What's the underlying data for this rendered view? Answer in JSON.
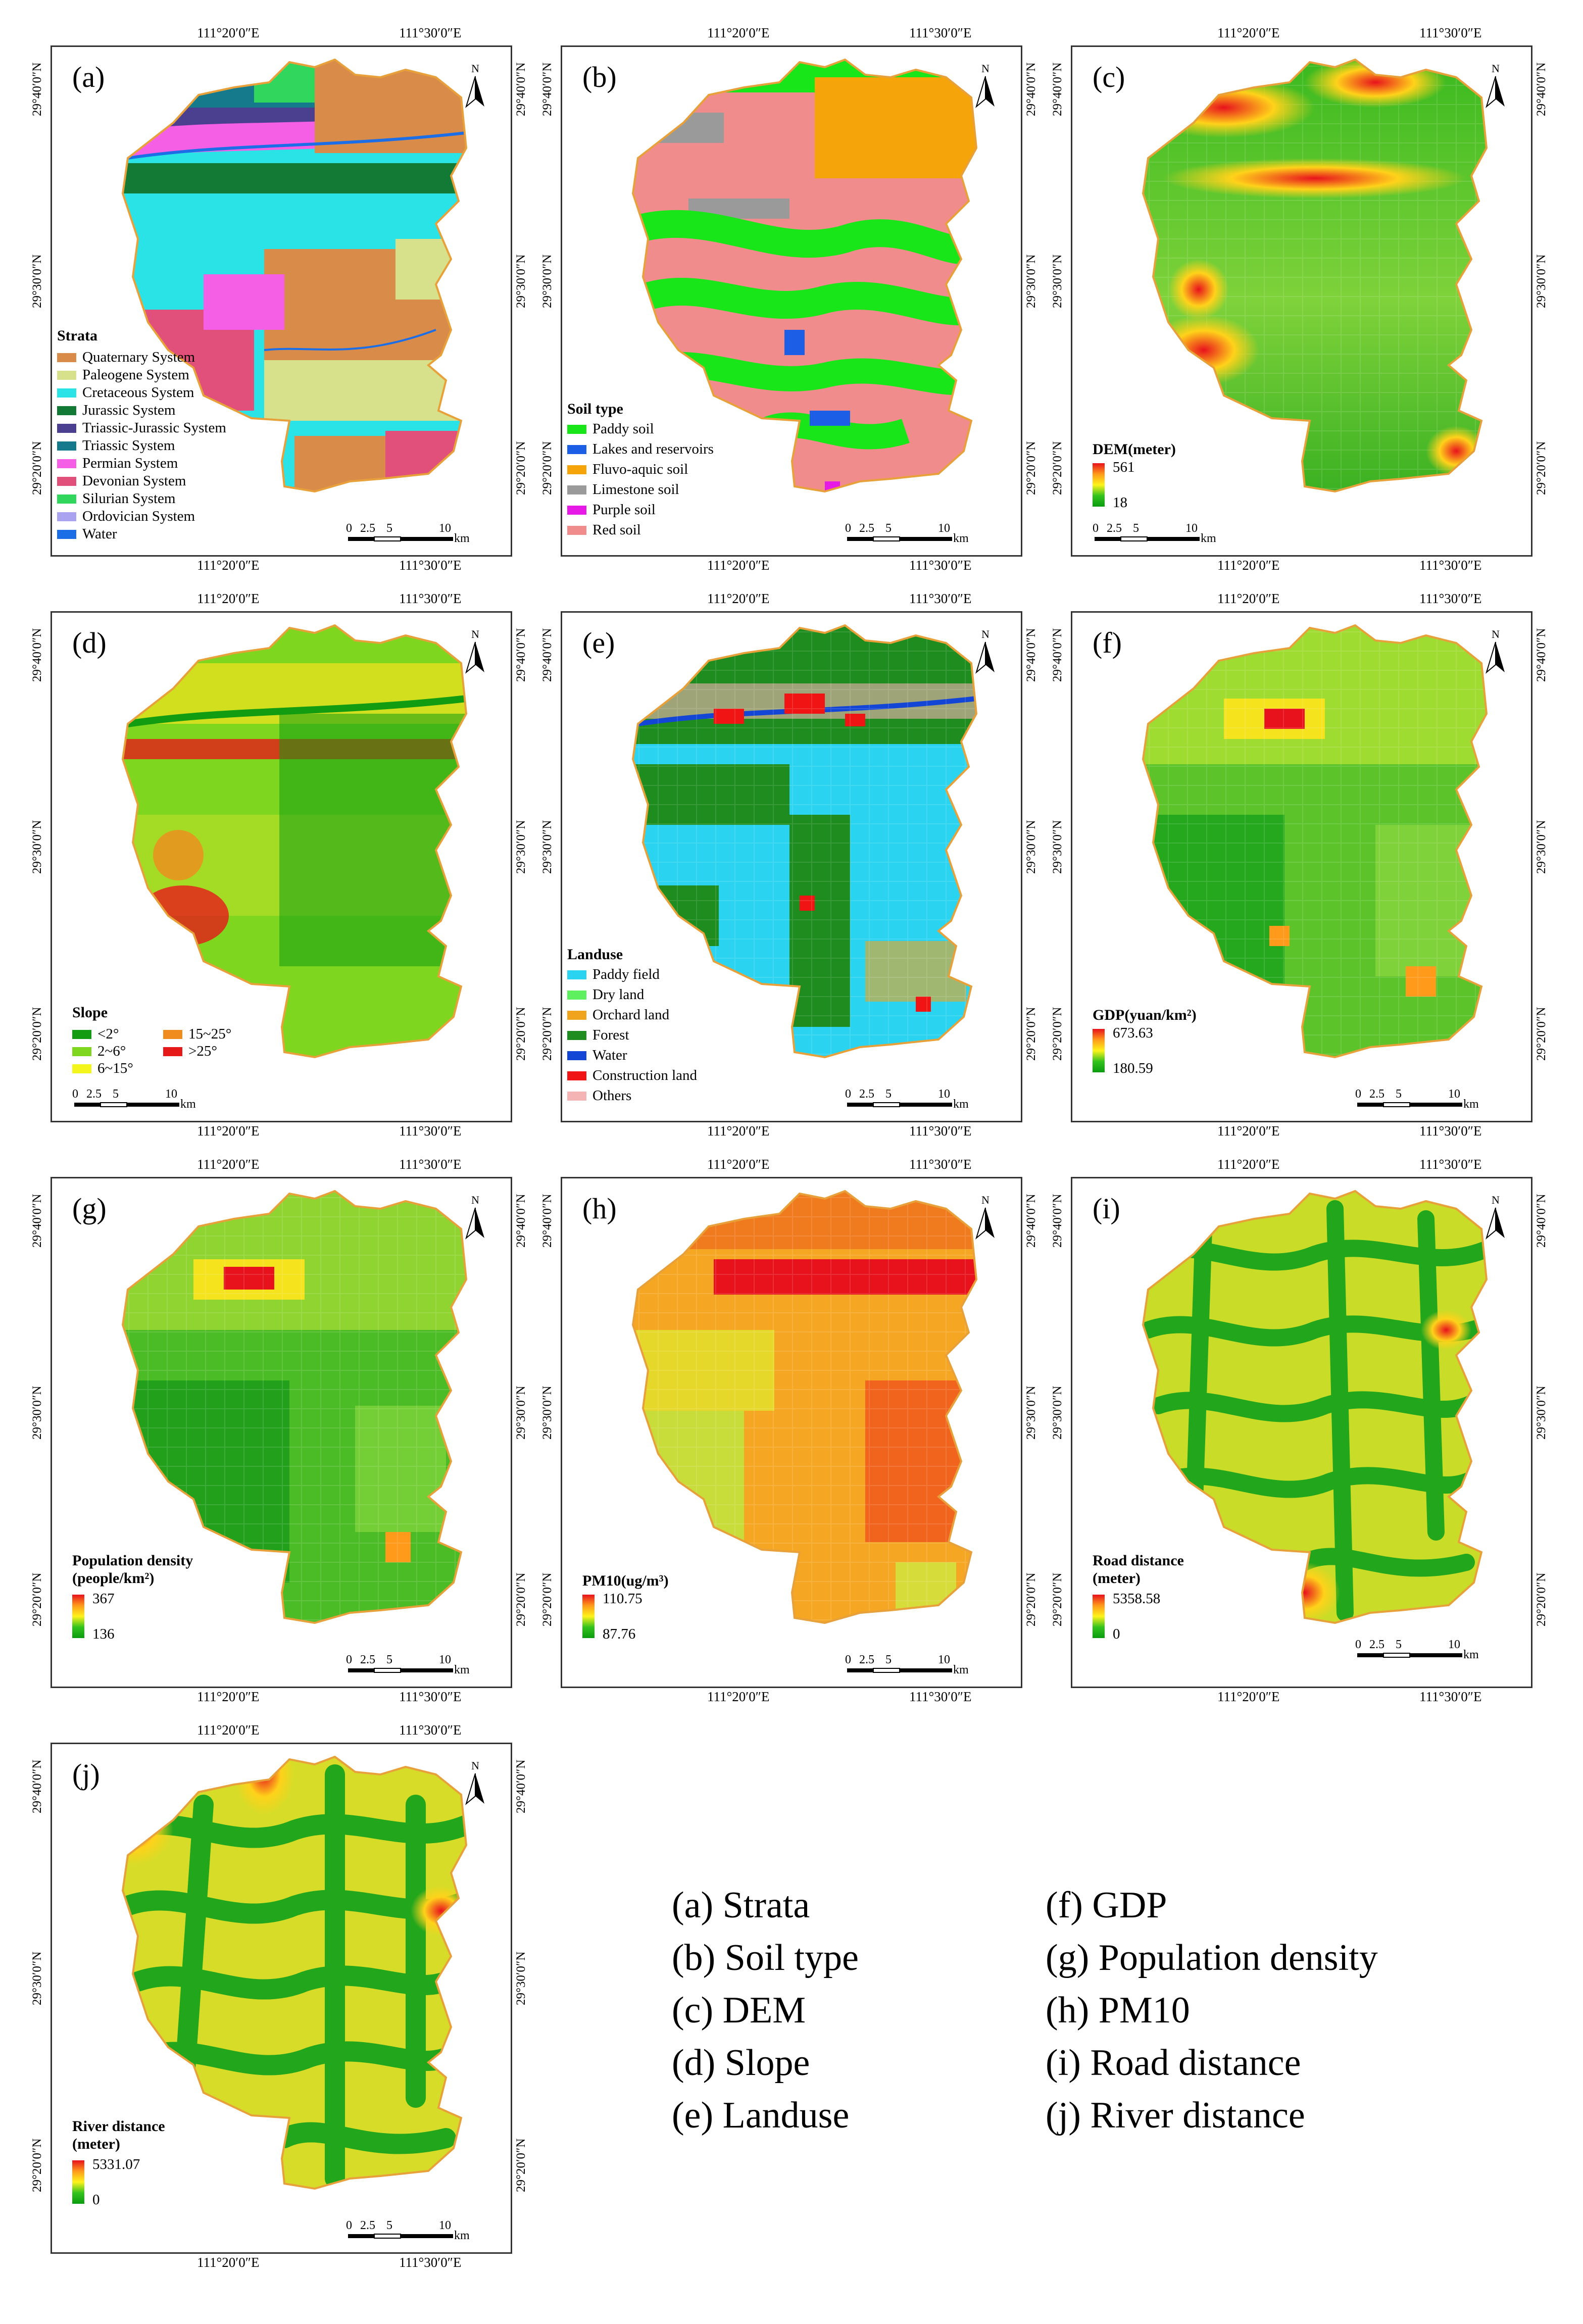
{
  "coords": {
    "lon1": "111°20′0″E",
    "lon2": "111°30′0″E",
    "lat1": "29°40′0″N",
    "lat2": "29°30′0″N",
    "lat3": "29°20′0″N"
  },
  "north_label": "N",
  "scale": {
    "t0": "0",
    "t1": "2.5",
    "t2": "5",
    "t3": "10",
    "unit": "km"
  },
  "panels": {
    "a": {
      "label": "(a)",
      "legend_title": "Strata",
      "items": [
        {
          "name": "Quaternary System",
          "color": "#d98c4a"
        },
        {
          "name": "Paleogene System",
          "color": "#d7e08a"
        },
        {
          "name": "Cretaceous System",
          "color": "#29e3e6"
        },
        {
          "name": "Jurassic System",
          "color": "#137a35"
        },
        {
          "name": "Triassic-Jurassic System",
          "color": "#4b3f8f"
        },
        {
          "name": "Triassic System",
          "color": "#157a8c"
        },
        {
          "name": "Permian System",
          "color": "#f45fe6"
        },
        {
          "name": "Devonian System",
          "color": "#e0507a"
        },
        {
          "name": "Silurian System",
          "color": "#31d65c"
        },
        {
          "name": "Ordovician System",
          "color": "#a9a3f0"
        },
        {
          "name": "Water",
          "color": "#1c6ee6"
        }
      ]
    },
    "b": {
      "label": "(b)",
      "legend_title": "Soil type",
      "items": [
        {
          "name": "Paddy soil",
          "color": "#19e619"
        },
        {
          "name": "Lakes and reservoirs",
          "color": "#1c5ee6"
        },
        {
          "name": "Fluvo-aquic soil",
          "color": "#f5a50a"
        },
        {
          "name": "Limestone soil",
          "color": "#9a9a9a"
        },
        {
          "name": "Purple soil",
          "color": "#e619e6"
        },
        {
          "name": "Red soil",
          "color": "#f08c8c"
        }
      ]
    },
    "c": {
      "label": "(c)",
      "legend_title": "DEM(meter)",
      "max": "561",
      "min": "18"
    },
    "d": {
      "label": "(d)",
      "legend_title": "Slope",
      "items": [
        {
          "name": "<2°",
          "color": "#129c12"
        },
        {
          "name": "2~6°",
          "color": "#7fd61e"
        },
        {
          "name": "6~15°",
          "color": "#f5f51e"
        },
        {
          "name": "15~25°",
          "color": "#f08c1e"
        },
        {
          "name": ">25°",
          "color": "#e61919"
        }
      ]
    },
    "e": {
      "label": "(e)",
      "legend_title": "Landuse",
      "items": [
        {
          "name": "Paddy field",
          "color": "#2ad4f0"
        },
        {
          "name": "Dry land",
          "color": "#5ef05e"
        },
        {
          "name": "Orchard land",
          "color": "#f0a41e"
        },
        {
          "name": "Forest",
          "color": "#1e8c1e"
        },
        {
          "name": "Water",
          "color": "#1446d6"
        },
        {
          "name": "Construction land",
          "color": "#f01414"
        },
        {
          "name": "Others",
          "color": "#f5b4b4"
        }
      ]
    },
    "f": {
      "label": "(f)",
      "legend_title": "GDP(yuan/km²)",
      "max": "673.63",
      "min": "180.59"
    },
    "g": {
      "label": "(g)",
      "legend_title_1": "Population density",
      "legend_title_2": "(people/km²)",
      "max": "367",
      "min": "136"
    },
    "h": {
      "label": "(h)",
      "legend_title": "PM10(ug/m³)",
      "max": "110.75",
      "min": "87.76"
    },
    "i": {
      "label": "(i)",
      "legend_title_1": "Road distance",
      "legend_title_2": "(meter)",
      "max": "5358.58",
      "min": "0"
    },
    "j": {
      "label": "(j)",
      "legend_title_1": "River distance",
      "legend_title_2": "(meter)",
      "max": "5331.07",
      "min": "0"
    }
  },
  "key": {
    "left": [
      "(a) Strata",
      "(b) Soil type",
      "(c) DEM",
      "(d) Slope",
      "(e) Landuse"
    ],
    "right": [
      "(f) GDP",
      "(g) Population density",
      "(h) PM10",
      "(i) Road distance",
      "(j) River distance"
    ]
  }
}
